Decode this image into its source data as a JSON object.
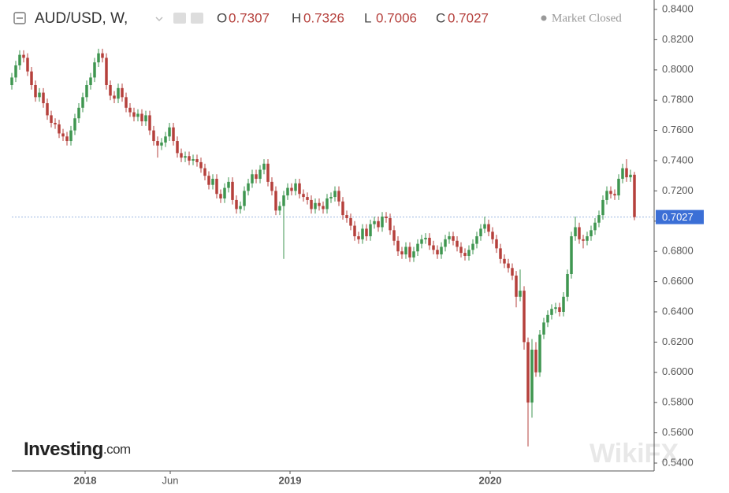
{
  "chart_data": {
    "type": "candlestick",
    "title": "AUD/USD, W,",
    "ohlc_labels": [
      "O",
      "H",
      "L",
      "C"
    ],
    "status": "Market Closed",
    "logo": "Investing",
    "logo_suffix": ".com",
    "watermark": "WikiFX",
    "up_color": "#3f9650",
    "down_color": "#b5403c",
    "price_line_color": "#9fb8e0",
    "price_label_color": "#3b6fd6",
    "open": [
      0.79,
      0.795,
      0.803,
      0.81,
      0.808,
      0.799,
      0.79,
      0.782,
      0.785,
      0.778,
      0.77,
      0.765,
      0.764,
      0.758,
      0.756,
      0.753,
      0.76,
      0.768,
      0.775,
      0.782,
      0.79,
      0.795,
      0.805,
      0.811,
      0.808,
      0.79,
      0.783,
      0.781,
      0.788,
      0.782,
      0.775,
      0.772,
      0.769,
      0.771,
      0.766,
      0.77,
      0.76,
      0.753,
      0.75,
      0.752,
      0.756,
      0.762,
      0.753,
      0.745,
      0.742,
      0.743,
      0.74,
      0.741,
      0.739,
      0.735,
      0.73,
      0.724,
      0.728,
      0.718,
      0.715,
      0.722,
      0.726,
      0.714,
      0.708,
      0.71,
      0.72,
      0.725,
      0.731,
      0.728,
      0.734,
      0.738,
      0.726,
      0.72,
      0.707,
      0.71,
      0.717,
      0.722,
      0.72,
      0.725,
      0.718,
      0.716,
      0.714,
      0.708,
      0.712,
      0.71,
      0.708,
      0.715,
      0.716,
      0.72,
      0.713,
      0.704,
      0.702,
      0.697,
      0.69,
      0.688,
      0.695,
      0.69,
      0.698,
      0.7,
      0.696,
      0.703,
      0.702,
      0.694,
      0.687,
      0.68,
      0.678,
      0.683,
      0.676,
      0.68,
      0.685,
      0.688,
      0.689,
      0.684,
      0.681,
      0.678,
      0.683,
      0.688,
      0.69,
      0.687,
      0.683,
      0.679,
      0.677,
      0.681,
      0.685,
      0.69,
      0.695,
      0.698,
      0.693,
      0.688,
      0.682,
      0.675,
      0.672,
      0.669,
      0.664,
      0.65,
      0.654,
      0.62,
      0.58,
      0.615,
      0.6,
      0.625,
      0.633,
      0.638,
      0.642,
      0.643,
      0.64,
      0.65,
      0.665,
      0.69,
      0.696,
      0.688,
      0.687,
      0.69,
      0.694,
      0.699,
      0.704,
      0.714,
      0.72,
      0.718,
      0.717,
      0.728,
      0.735,
      0.729,
      0.7307
    ],
    "high": [
      0.798,
      0.806,
      0.813,
      0.813,
      0.811,
      0.802,
      0.793,
      0.788,
      0.788,
      0.781,
      0.773,
      0.768,
      0.767,
      0.761,
      0.759,
      0.763,
      0.771,
      0.778,
      0.785,
      0.793,
      0.798,
      0.808,
      0.814,
      0.814,
      0.811,
      0.793,
      0.786,
      0.791,
      0.791,
      0.785,
      0.778,
      0.775,
      0.774,
      0.774,
      0.773,
      0.773,
      0.763,
      0.756,
      0.755,
      0.759,
      0.765,
      0.765,
      0.756,
      0.748,
      0.746,
      0.746,
      0.744,
      0.744,
      0.742,
      0.738,
      0.733,
      0.731,
      0.731,
      0.721,
      0.725,
      0.729,
      0.729,
      0.717,
      0.713,
      0.723,
      0.728,
      0.734,
      0.734,
      0.737,
      0.741,
      0.741,
      0.729,
      0.723,
      0.713,
      0.72,
      0.725,
      0.725,
      0.728,
      0.728,
      0.721,
      0.719,
      0.717,
      0.715,
      0.715,
      0.713,
      0.718,
      0.719,
      0.723,
      0.723,
      0.716,
      0.707,
      0.705,
      0.7,
      0.693,
      0.698,
      0.698,
      0.701,
      0.703,
      0.703,
      0.706,
      0.706,
      0.705,
      0.697,
      0.69,
      0.683,
      0.686,
      0.686,
      0.683,
      0.688,
      0.691,
      0.692,
      0.692,
      0.687,
      0.684,
      0.686,
      0.691,
      0.693,
      0.693,
      0.69,
      0.686,
      0.682,
      0.684,
      0.688,
      0.693,
      0.698,
      0.703,
      0.701,
      0.696,
      0.691,
      0.685,
      0.678,
      0.675,
      0.672,
      0.667,
      0.668,
      0.657,
      0.623,
      0.622,
      0.62,
      0.628,
      0.636,
      0.641,
      0.645,
      0.646,
      0.646,
      0.653,
      0.668,
      0.693,
      0.703,
      0.699,
      0.691,
      0.693,
      0.697,
      0.702,
      0.707,
      0.717,
      0.723,
      0.723,
      0.721,
      0.731,
      0.738,
      0.741,
      0.734,
      0.7326
    ],
    "low": [
      0.787,
      0.792,
      0.8,
      0.805,
      0.796,
      0.787,
      0.779,
      0.779,
      0.775,
      0.767,
      0.762,
      0.761,
      0.755,
      0.753,
      0.75,
      0.75,
      0.757,
      0.765,
      0.772,
      0.779,
      0.787,
      0.792,
      0.802,
      0.805,
      0.787,
      0.78,
      0.778,
      0.778,
      0.779,
      0.772,
      0.769,
      0.766,
      0.766,
      0.763,
      0.763,
      0.757,
      0.75,
      0.742,
      0.747,
      0.749,
      0.753,
      0.75,
      0.742,
      0.739,
      0.739,
      0.737,
      0.737,
      0.736,
      0.732,
      0.727,
      0.721,
      0.721,
      0.715,
      0.712,
      0.712,
      0.719,
      0.711,
      0.705,
      0.705,
      0.707,
      0.717,
      0.722,
      0.725,
      0.725,
      0.731,
      0.723,
      0.717,
      0.704,
      0.704,
      0.675,
      0.714,
      0.717,
      0.717,
      0.715,
      0.713,
      0.711,
      0.705,
      0.705,
      0.707,
      0.705,
      0.705,
      0.712,
      0.713,
      0.71,
      0.701,
      0.699,
      0.694,
      0.687,
      0.685,
      0.685,
      0.687,
      0.687,
      0.695,
      0.693,
      0.693,
      0.699,
      0.691,
      0.684,
      0.677,
      0.675,
      0.675,
      0.673,
      0.673,
      0.677,
      0.682,
      0.685,
      0.681,
      0.678,
      0.675,
      0.675,
      0.68,
      0.685,
      0.684,
      0.68,
      0.676,
      0.674,
      0.674,
      0.678,
      0.682,
      0.687,
      0.692,
      0.69,
      0.685,
      0.679,
      0.672,
      0.669,
      0.666,
      0.661,
      0.643,
      0.647,
      0.615,
      0.551,
      0.57,
      0.597,
      0.597,
      0.622,
      0.63,
      0.635,
      0.639,
      0.637,
      0.637,
      0.647,
      0.662,
      0.687,
      0.685,
      0.682,
      0.684,
      0.687,
      0.691,
      0.696,
      0.701,
      0.711,
      0.715,
      0.714,
      0.714,
      0.725,
      0.726,
      0.726,
      0.7006
    ],
    "close": [
      0.795,
      0.803,
      0.81,
      0.808,
      0.799,
      0.79,
      0.782,
      0.785,
      0.778,
      0.77,
      0.765,
      0.764,
      0.758,
      0.756,
      0.753,
      0.76,
      0.768,
      0.775,
      0.782,
      0.79,
      0.795,
      0.805,
      0.811,
      0.808,
      0.79,
      0.783,
      0.781,
      0.788,
      0.782,
      0.775,
      0.772,
      0.769,
      0.771,
      0.766,
      0.77,
      0.76,
      0.753,
      0.75,
      0.752,
      0.756,
      0.762,
      0.753,
      0.745,
      0.742,
      0.743,
      0.74,
      0.741,
      0.739,
      0.735,
      0.73,
      0.724,
      0.728,
      0.718,
      0.715,
      0.722,
      0.726,
      0.714,
      0.708,
      0.71,
      0.72,
      0.725,
      0.731,
      0.728,
      0.734,
      0.738,
      0.726,
      0.72,
      0.707,
      0.71,
      0.717,
      0.722,
      0.72,
      0.725,
      0.718,
      0.716,
      0.714,
      0.708,
      0.712,
      0.71,
      0.708,
      0.715,
      0.716,
      0.72,
      0.713,
      0.704,
      0.702,
      0.697,
      0.69,
      0.688,
      0.695,
      0.69,
      0.698,
      0.7,
      0.696,
      0.703,
      0.702,
      0.694,
      0.687,
      0.68,
      0.678,
      0.683,
      0.676,
      0.68,
      0.685,
      0.688,
      0.689,
      0.684,
      0.681,
      0.678,
      0.683,
      0.688,
      0.69,
      0.687,
      0.683,
      0.679,
      0.677,
      0.681,
      0.685,
      0.69,
      0.695,
      0.698,
      0.693,
      0.688,
      0.682,
      0.675,
      0.672,
      0.669,
      0.664,
      0.65,
      0.654,
      0.62,
      0.58,
      0.615,
      0.6,
      0.625,
      0.633,
      0.638,
      0.642,
      0.643,
      0.64,
      0.65,
      0.665,
      0.69,
      0.696,
      0.688,
      0.687,
      0.69,
      0.694,
      0.699,
      0.704,
      0.714,
      0.72,
      0.718,
      0.717,
      0.728,
      0.735,
      0.729,
      0.7307,
      0.7027
    ],
    "xlim": [
      0,
      163
    ],
    "xticks": [
      {
        "value": 18.6,
        "label": "2018"
      },
      {
        "value": 40.2,
        "label": "Jun"
      },
      {
        "value": 70.6,
        "label": "2019"
      },
      {
        "value": 121.4,
        "label": "2020"
      }
    ],
    "ylim": [
      0.54,
      0.84
    ],
    "yticks": [
      {
        "value": 0.54,
        "label": "0.5400"
      },
      {
        "value": 0.56,
        "label": "0.5600"
      },
      {
        "value": 0.58,
        "label": "0.5800"
      },
      {
        "value": 0.6,
        "label": "0.6000"
      },
      {
        "value": 0.62,
        "label": "0.6200"
      },
      {
        "value": 0.64,
        "label": "0.6400"
      },
      {
        "value": 0.66,
        "label": "0.6600"
      },
      {
        "value": 0.68,
        "label": "0.6800"
      },
      {
        "value": 0.7,
        "label": "0.7000"
      },
      {
        "value": 0.72,
        "label": "0.7200"
      },
      {
        "value": 0.74,
        "label": "0.7400"
      },
      {
        "value": 0.76,
        "label": "0.7600"
      },
      {
        "value": 0.78,
        "label": "0.7800"
      },
      {
        "value": 0.8,
        "label": "0.8000"
      },
      {
        "value": 0.82,
        "label": "0.8200"
      },
      {
        "value": 0.84,
        "label": "0.8400"
      }
    ],
    "grid": false
  }
}
